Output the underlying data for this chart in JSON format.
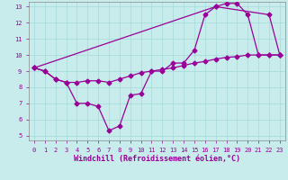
{
  "xlabel": "Windchill (Refroidissement éolien,°C)",
  "bg_color": "#c8ecec",
  "line_color": "#990099",
  "grid_color": "#aadddd",
  "xlim": [
    -0.5,
    23.5
  ],
  "ylim": [
    4.7,
    13.3
  ],
  "xticks": [
    0,
    1,
    2,
    3,
    4,
    5,
    6,
    7,
    8,
    9,
    10,
    11,
    12,
    13,
    14,
    15,
    16,
    17,
    18,
    19,
    20,
    21,
    22,
    23
  ],
  "yticks": [
    5,
    6,
    7,
    8,
    9,
    10,
    11,
    12,
    13
  ],
  "line1_x": [
    0,
    1,
    2,
    3,
    4,
    5,
    6,
    7,
    8,
    9,
    10,
    11,
    12,
    13,
    14,
    15,
    16,
    17,
    18,
    19,
    20,
    21,
    22,
    23
  ],
  "line1_y": [
    9.2,
    9.0,
    8.5,
    8.3,
    7.0,
    7.0,
    6.8,
    5.3,
    5.6,
    7.5,
    7.6,
    9.0,
    9.0,
    9.5,
    9.5,
    10.3,
    12.5,
    13.0,
    13.2,
    13.2,
    12.5,
    10.0,
    10.0,
    10.0
  ],
  "line2_x": [
    0,
    1,
    2,
    3,
    4,
    5,
    6,
    7,
    8,
    9,
    10,
    11,
    12,
    13,
    14,
    15,
    16,
    17,
    18,
    19,
    20,
    21,
    22,
    23
  ],
  "line2_y": [
    9.2,
    9.0,
    8.5,
    8.3,
    8.3,
    8.4,
    8.4,
    8.3,
    8.5,
    8.7,
    8.9,
    9.0,
    9.1,
    9.2,
    9.35,
    9.5,
    9.6,
    9.75,
    9.85,
    9.9,
    10.0,
    10.0,
    10.0,
    10.0
  ],
  "line3_x": [
    0,
    17,
    22,
    23
  ],
  "line3_y": [
    9.2,
    13.0,
    12.5,
    10.0
  ],
  "markersize": 2.5,
  "linewidth": 0.9,
  "tick_fontsize": 5.0,
  "xlabel_fontsize": 6.0
}
